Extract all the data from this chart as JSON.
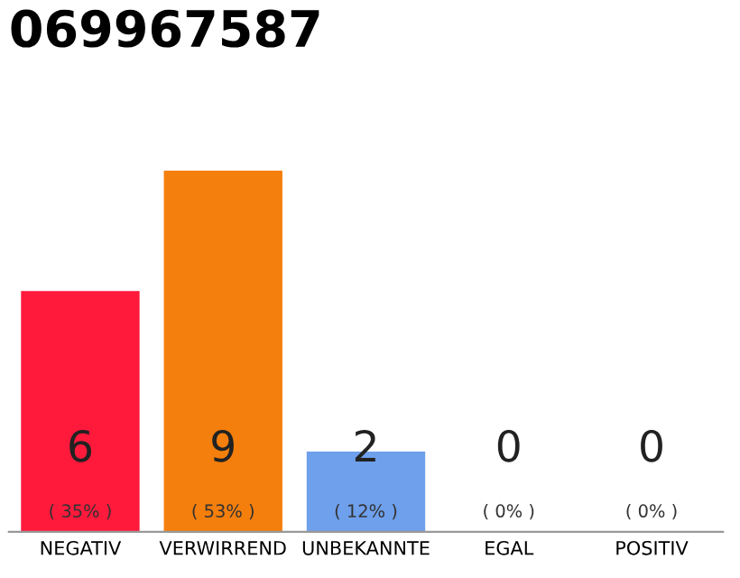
{
  "chart_data": {
    "type": "bar",
    "title": "069967587",
    "categories": [
      "NEGATIV",
      "VERWIRREND",
      "UNBEKANNTE",
      "EGAL",
      "POSITIV"
    ],
    "values": [
      6,
      9,
      2,
      0,
      0
    ],
    "colors": [
      "#ff1a3c",
      "#f57f0c",
      "#6ea0ec",
      "#dddddd",
      "#dddddd"
    ],
    "value_labels": [
      "6\n( 35% )",
      "9\n( 53% )",
      "2\n( 12% )",
      "0\n( 0% )",
      "0\n( 0% )"
    ],
    "ylim": [
      0,
      9
    ],
    "tick_labels": "x",
    "grid": false,
    "legend": false
  }
}
